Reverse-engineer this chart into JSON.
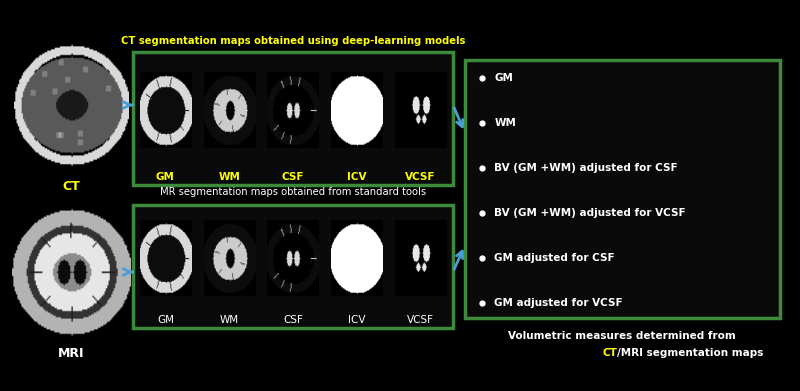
{
  "bg_color": "#000000",
  "title_ct": "CT segmentation maps obtained using deep-learning models",
  "title_ct_color": "#ffff00",
  "title_mr": "MR segmentation maps obtained from standard tools",
  "title_mr_color": "#ffffff",
  "ct_label": "CT",
  "mri_label": "MRI",
  "ct_label_color": "#ffff00",
  "mri_label_color": "#ffffff",
  "seg_labels_ct": [
    "GM",
    "WM",
    "CSF",
    "ICV",
    "VCSF"
  ],
  "seg_labels_ct_color": "#ffff00",
  "seg_labels_mr": [
    "GM",
    "WM",
    "CSF",
    "ICV",
    "VCSF"
  ],
  "seg_labels_mr_color": "#ffffff",
  "box_color": "#3d8a3d",
  "right_box_color": "#3d8a3d",
  "bullet_items": [
    "GM",
    "WM",
    "BV (GM +WM) adjusted for CSF",
    "BV (GM +WM) adjusted for VCSF",
    "GM adjusted for CSF",
    "GM adjusted for VCSF"
  ],
  "bullet_color": "#ffffff",
  "footer_line1": "Volumetric measures determined from",
  "footer_ct": "CT",
  "footer_line2": "/MRI segmentation maps",
  "footer_color": "#ffffff",
  "footer_ct_color": "#ffff00",
  "arrow_color": "#4a9fd4"
}
